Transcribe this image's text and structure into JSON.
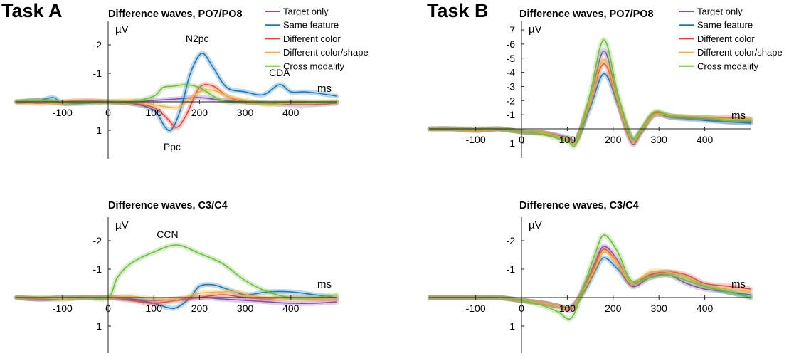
{
  "figure": {
    "task_a": "Task A",
    "task_b": "Task B"
  },
  "colors": {
    "Target only": "#7E4FB0",
    "Same feature": "#1A78B8",
    "Different color": "#E8453C",
    "Different color/shape": "#F2B33A",
    "Cross modality": "#6BBF3B"
  },
  "chart_data": [
    {
      "type": "line",
      "task": "Task A",
      "title": "Difference waves, PO7/PO8",
      "xlabel": "ms",
      "ylabel": "µV",
      "y_inverted": true,
      "xlim": [
        -200,
        500
      ],
      "ylim": [
        1.9,
        -2.6
      ],
      "xticks": [
        -100,
        0,
        100,
        200,
        300,
        400
      ],
      "xticklabels": [
        "-100",
        "0",
        "100",
        "200",
        "300",
        "400"
      ],
      "yticks": [
        -2,
        -1,
        1
      ],
      "yticklabels": [
        "-2",
        "-1",
        "1"
      ],
      "legend": true,
      "legend_position": "top-right",
      "annotations": [
        {
          "text": "N2pc",
          "x": 195,
          "y": -2.1
        },
        {
          "text": "CDA",
          "x": 375,
          "y": -0.9
        },
        {
          "text": "Ppc",
          "x": 140,
          "y": 1.7
        }
      ],
      "series": [
        {
          "name": "Target only",
          "x": [
            -200,
            -150,
            -100,
            -50,
            0,
            50,
            100,
            150,
            200,
            250,
            300,
            350,
            400,
            450,
            500
          ],
          "y": [
            0,
            -0.05,
            0.05,
            0,
            0,
            0,
            -0.05,
            -0.1,
            -0.15,
            -0.05,
            0,
            0.05,
            0.1,
            0.1,
            0.05
          ]
        },
        {
          "name": "Same feature",
          "x": [
            -200,
            -150,
            -120,
            -100,
            -50,
            0,
            50,
            100,
            125,
            140,
            160,
            180,
            205,
            230,
            260,
            300,
            340,
            375,
            400,
            430,
            460,
            500
          ],
          "y": [
            0,
            -0.05,
            -0.15,
            0.05,
            0.05,
            0,
            0.05,
            0.3,
            0.9,
            0.95,
            0.2,
            -1.0,
            -1.7,
            -1.2,
            -0.5,
            -0.35,
            -0.25,
            -0.6,
            -0.35,
            -0.35,
            -0.3,
            -0.2
          ]
        },
        {
          "name": "Different color",
          "x": [
            -200,
            -150,
            -100,
            -50,
            0,
            50,
            100,
            130,
            150,
            170,
            200,
            230,
            260,
            300,
            350,
            400,
            450,
            500
          ],
          "y": [
            0,
            0.05,
            0,
            -0.05,
            0,
            0.05,
            0.2,
            0.6,
            0.9,
            0.5,
            -0.5,
            -0.55,
            -0.2,
            0,
            0.05,
            0,
            0.05,
            0
          ]
        },
        {
          "name": "Different color/shape",
          "x": [
            -200,
            -150,
            -100,
            -50,
            0,
            50,
            100,
            140,
            160,
            200,
            230,
            270,
            320,
            350,
            400,
            450,
            500
          ],
          "y": [
            0,
            0,
            0.05,
            0,
            0,
            -0.05,
            0.1,
            0.2,
            0.15,
            -0.35,
            -0.4,
            -0.15,
            0,
            0.1,
            0.05,
            0.05,
            0
          ]
        },
        {
          "name": "Cross modality",
          "x": [
            -200,
            -150,
            -100,
            -50,
            0,
            50,
            100,
            120,
            145,
            170,
            200,
            230,
            260,
            300,
            350,
            400,
            450,
            500
          ],
          "y": [
            0,
            -0.05,
            0,
            0,
            0,
            0,
            -0.2,
            -0.5,
            -0.55,
            -0.6,
            -0.5,
            -0.2,
            0,
            0,
            0.05,
            0,
            0,
            0
          ]
        }
      ]
    },
    {
      "type": "line",
      "task": "Task A",
      "title": "Difference waves, C3/C4",
      "xlabel": "ms",
      "ylabel": "µV",
      "y_inverted": true,
      "xlim": [
        -200,
        500
      ],
      "ylim": [
        1.9,
        -2.6
      ],
      "xticks": [
        -100,
        0,
        100,
        200,
        300,
        400
      ],
      "xticklabels": [
        "-100",
        "0",
        "100",
        "200",
        "300",
        "400"
      ],
      "yticks": [
        -2,
        -1,
        1
      ],
      "yticklabels": [
        "-2",
        "-1",
        "1"
      ],
      "legend": false,
      "annotations": [
        {
          "text": "CCN",
          "x": 130,
          "y": -2.1
        }
      ],
      "series": [
        {
          "name": "Target only",
          "x": [
            -200,
            -150,
            -100,
            -50,
            0,
            50,
            100,
            150,
            200,
            250,
            300,
            350,
            400,
            450,
            500
          ],
          "y": [
            0,
            0.05,
            0.05,
            0,
            0,
            0.05,
            0.1,
            0.05,
            0,
            0.05,
            0.1,
            0.15,
            0.2,
            0.2,
            0.15
          ]
        },
        {
          "name": "Same feature",
          "x": [
            -200,
            -150,
            -100,
            -50,
            0,
            50,
            100,
            130,
            150,
            180,
            200,
            230,
            260,
            300,
            350,
            400,
            450,
            500
          ],
          "y": [
            0,
            0.05,
            0,
            0,
            0,
            0.05,
            0.2,
            0.35,
            0.35,
            0,
            -0.4,
            -0.45,
            -0.3,
            -0.1,
            -0.2,
            -0.2,
            -0.1,
            0
          ]
        },
        {
          "name": "Different color",
          "x": [
            -200,
            -150,
            -100,
            -50,
            0,
            50,
            100,
            150,
            200,
            250,
            300,
            350,
            400,
            450,
            500
          ],
          "y": [
            0,
            0.05,
            0,
            0,
            0,
            0.1,
            0.2,
            0.1,
            0,
            -0.1,
            0,
            0.05,
            0,
            0.05,
            0.05
          ]
        },
        {
          "name": "Different color/shape",
          "x": [
            -200,
            -150,
            -100,
            -50,
            0,
            50,
            100,
            150,
            200,
            250,
            280,
            320,
            350,
            400,
            450,
            500
          ],
          "y": [
            0,
            0,
            0.05,
            0,
            0,
            -0.05,
            0.05,
            0.05,
            -0.15,
            -0.2,
            -0.2,
            -0.05,
            0,
            0.05,
            0.05,
            0.05
          ]
        },
        {
          "name": "Cross modality",
          "x": [
            -200,
            -150,
            -100,
            -50,
            0,
            20,
            50,
            100,
            150,
            200,
            250,
            300,
            350,
            400,
            450,
            500
          ],
          "y": [
            0,
            0,
            0,
            0,
            0,
            -0.7,
            -1.2,
            -1.6,
            -1.85,
            -1.55,
            -1.2,
            -0.6,
            -0.2,
            0,
            0,
            -0.1
          ]
        }
      ]
    },
    {
      "type": "line",
      "task": "Task B",
      "title": "Difference waves, PO7/PO8",
      "xlabel": "ms",
      "ylabel": "µV",
      "y_inverted": true,
      "xlim": [
        -200,
        500
      ],
      "ylim": [
        2.0,
        -7.6
      ],
      "xticks": [
        -100,
        0,
        100,
        200,
        300,
        400
      ],
      "xticklabels": [
        "-100",
        "0",
        "100",
        "200",
        "300",
        "400"
      ],
      "yticks": [
        -7,
        -6,
        -5,
        -4,
        -3,
        -2,
        -1,
        1
      ],
      "yticklabels": [
        "-7",
        "-6",
        "-5",
        "-4",
        "-3",
        "-2",
        "-1",
        "1"
      ],
      "legend": true,
      "legend_position": "top-right",
      "series": [
        {
          "name": "Target only",
          "x": [
            -200,
            -150,
            -100,
            -50,
            0,
            50,
            100,
            120,
            150,
            180,
            210,
            240,
            260,
            290,
            330,
            400,
            450,
            500
          ],
          "y": [
            0,
            0,
            0.1,
            0,
            0.2,
            0.3,
            0.7,
            0.8,
            -2.0,
            -5.5,
            -2.0,
            1.0,
            0.3,
            -1.0,
            -0.8,
            -0.7,
            -0.5,
            -0.5
          ]
        },
        {
          "name": "Same feature",
          "x": [
            -200,
            -150,
            -100,
            -50,
            0,
            50,
            100,
            120,
            150,
            180,
            210,
            240,
            260,
            290,
            330,
            400,
            450,
            500
          ],
          "y": [
            0,
            0,
            0.1,
            0,
            0.2,
            0.3,
            0.6,
            0.7,
            -1.5,
            -3.9,
            -1.8,
            0.6,
            0.2,
            -1.0,
            -0.8,
            -0.6,
            -0.5,
            -0.4
          ]
        },
        {
          "name": "Different color",
          "x": [
            -200,
            -150,
            -100,
            -50,
            0,
            50,
            100,
            120,
            150,
            180,
            210,
            240,
            260,
            290,
            330,
            400,
            450,
            500
          ],
          "y": [
            0,
            0,
            0.1,
            0,
            0.2,
            0.3,
            0.7,
            0.8,
            -2.0,
            -4.6,
            -2.0,
            0.8,
            0.2,
            -1.1,
            -0.9,
            -0.8,
            -0.8,
            -0.7
          ]
        },
        {
          "name": "Different color/shape",
          "x": [
            -200,
            -150,
            -100,
            -50,
            0,
            50,
            100,
            120,
            150,
            180,
            210,
            240,
            260,
            290,
            330,
            400,
            450,
            500
          ],
          "y": [
            0,
            0,
            0.1,
            0,
            0.2,
            0.3,
            0.7,
            0.8,
            -2.0,
            -4.9,
            -2.0,
            0.8,
            0.2,
            -1.0,
            -0.9,
            -0.8,
            -0.7,
            -0.7
          ]
        },
        {
          "name": "Cross modality",
          "x": [
            -200,
            -150,
            -100,
            -50,
            0,
            50,
            100,
            120,
            150,
            180,
            210,
            240,
            260,
            290,
            330,
            400,
            450,
            500
          ],
          "y": [
            0,
            0,
            0,
            0,
            0.2,
            0.4,
            0.9,
            1.0,
            -2.5,
            -6.3,
            -2.5,
            0.6,
            0.1,
            -1.2,
            -0.9,
            -0.8,
            -0.6,
            -0.6
          ]
        }
      ]
    },
    {
      "type": "line",
      "task": "Task B",
      "title": "Difference waves, C3/C4",
      "xlabel": "ms",
      "ylabel": "µV",
      "y_inverted": true,
      "xlim": [
        -200,
        500
      ],
      "ylim": [
        1.9,
        -2.6
      ],
      "xticks": [
        -100,
        0,
        100,
        200,
        300,
        400
      ],
      "xticklabels": [
        "-100",
        "0",
        "100",
        "200",
        "300",
        "400"
      ],
      "yticks": [
        -2,
        -1,
        1
      ],
      "yticklabels": [
        "-2",
        "-1",
        "1"
      ],
      "legend": false,
      "series": [
        {
          "name": "Target only",
          "x": [
            -200,
            -150,
            -100,
            -50,
            0,
            50,
            80,
            110,
            140,
            160,
            180,
            210,
            240,
            280,
            320,
            360,
            400,
            450,
            500
          ],
          "y": [
            0,
            0,
            0,
            0,
            0.1,
            0.2,
            0.3,
            0.4,
            -0.5,
            -1.2,
            -1.8,
            -1.3,
            -0.4,
            -0.7,
            -0.8,
            -0.5,
            -0.3,
            -0.2,
            0
          ]
        },
        {
          "name": "Same feature",
          "x": [
            -200,
            -150,
            -100,
            -50,
            0,
            50,
            80,
            110,
            140,
            160,
            180,
            210,
            240,
            280,
            320,
            360,
            400,
            450,
            500
          ],
          "y": [
            0,
            0,
            0,
            0,
            0.1,
            0.2,
            0.3,
            0.3,
            -0.3,
            -0.9,
            -1.4,
            -1.0,
            -0.5,
            -0.8,
            -0.9,
            -0.7,
            -0.4,
            -0.2,
            -0.1
          ]
        },
        {
          "name": "Different color",
          "x": [
            -200,
            -150,
            -100,
            -50,
            0,
            50,
            80,
            110,
            140,
            160,
            180,
            210,
            240,
            280,
            320,
            360,
            400,
            450,
            500
          ],
          "y": [
            0,
            0,
            0,
            0,
            0.1,
            0.2,
            0.3,
            0.35,
            -0.4,
            -1.1,
            -1.7,
            -1.2,
            -0.5,
            -0.8,
            -0.9,
            -0.8,
            -0.5,
            -0.4,
            -0.3
          ]
        },
        {
          "name": "Different color/shape",
          "x": [
            -200,
            -150,
            -100,
            -50,
            0,
            50,
            80,
            110,
            140,
            160,
            180,
            210,
            240,
            280,
            320,
            360,
            400,
            450,
            500
          ],
          "y": [
            0,
            0,
            0,
            0,
            0.1,
            0.2,
            0.3,
            0.35,
            -0.4,
            -1.0,
            -1.6,
            -1.2,
            -0.5,
            -0.9,
            -0.9,
            -0.7,
            -0.4,
            -0.3,
            -0.2
          ]
        },
        {
          "name": "Cross modality",
          "x": [
            -200,
            -150,
            -100,
            -50,
            0,
            50,
            80,
            110,
            140,
            160,
            180,
            210,
            240,
            280,
            320,
            360,
            400,
            450,
            500
          ],
          "y": [
            0,
            0,
            0,
            0,
            0.1,
            0.3,
            0.5,
            0.7,
            -0.6,
            -1.5,
            -2.2,
            -1.6,
            -0.6,
            -0.7,
            -0.8,
            -0.6,
            -0.4,
            -0.2,
            0
          ]
        }
      ]
    }
  ]
}
